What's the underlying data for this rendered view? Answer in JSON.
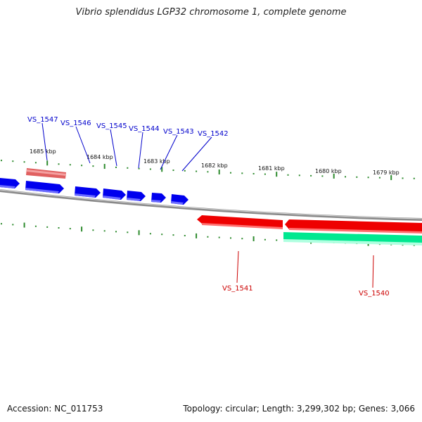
{
  "title": "Vibrio splendidus LGP32 chromosome 1, complete genome",
  "footer": {
    "accession": "Accession: NC_011753",
    "summary": "Topology: circular; Length: 3,299,302 bp; Genes: 3,066"
  },
  "scale_labels": [
    "1685 kbp",
    "1684 kbp",
    "1683 kbp",
    "1682 kbp",
    "1681 kbp",
    "1680 kbp",
    "1679 kbp"
  ],
  "genes": {
    "top_labeled": [
      "VS_1547",
      "VS_1546",
      "VS_1545",
      "VS_1544",
      "VS_1543",
      "VS_1542"
    ],
    "bottom_labeled": [
      "VS_1541",
      "VS_1540"
    ]
  },
  "colors": {
    "backbone": "#8a8a8a",
    "scale_tick": "#2e8b2e",
    "forward_gene": "#0000ee",
    "forward_gene_light": "#f08080",
    "reverse_gene": "#ee0000",
    "reverse_gene_alt": "#00e890",
    "top_label": "#0000cc",
    "bottom_label": "#cc0000"
  }
}
